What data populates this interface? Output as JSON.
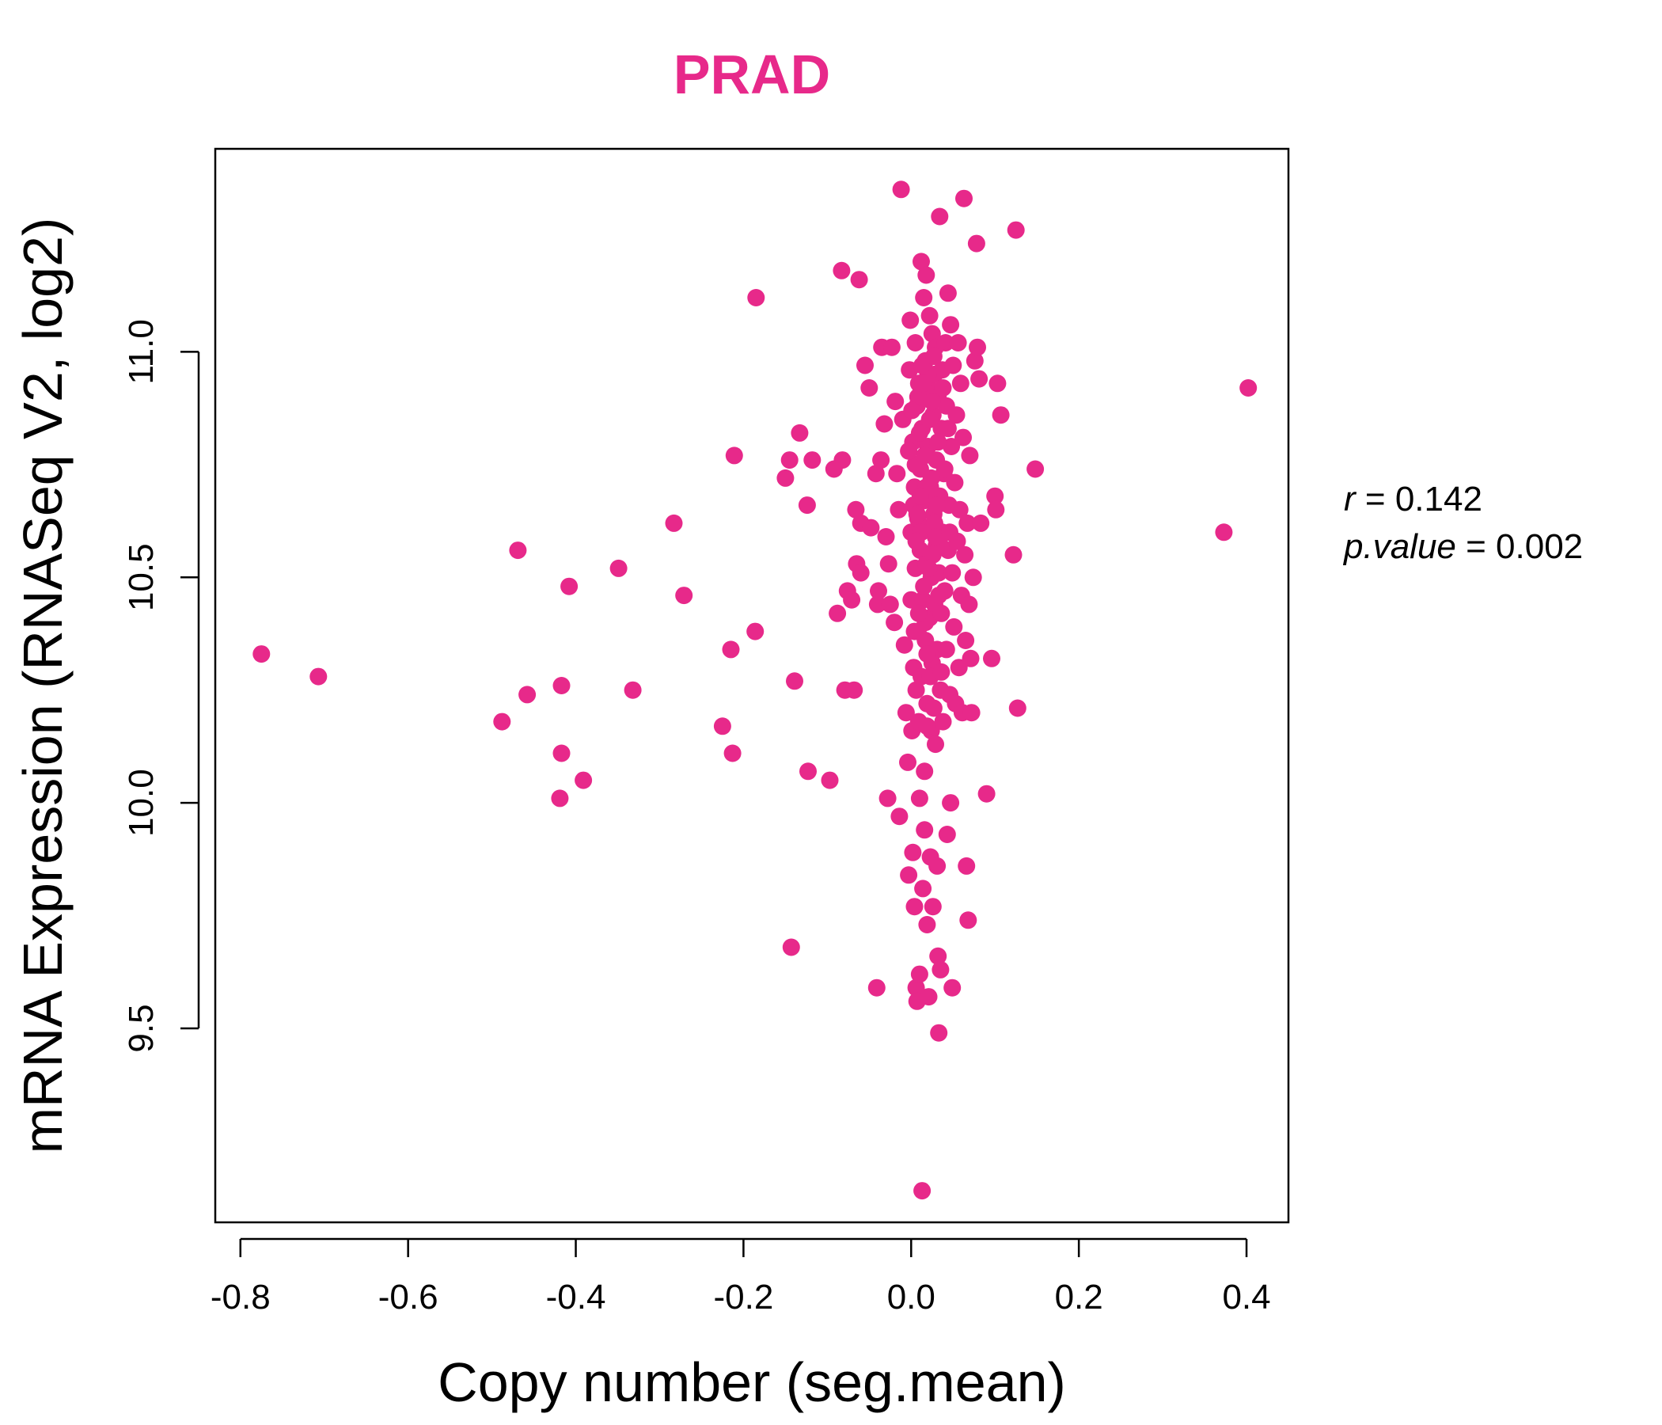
{
  "chart_data": {
    "type": "scatter",
    "title": "PRAD",
    "xlabel": "Copy number (seg.mean)",
    "ylabel": "mRNA Expression (RNASeq V2, log2)",
    "xlim": [
      -0.83,
      0.45
    ],
    "ylim": [
      9.07,
      11.45
    ],
    "x_ticks": [
      "-0.8",
      "-0.6",
      "-0.4",
      "-0.2",
      "0.0",
      "0.2",
      "0.4"
    ],
    "y_ticks": [
      "9.5",
      "10.0",
      "10.5",
      "11.0"
    ],
    "grid": false,
    "legend": "none",
    "color": "#e7298a",
    "stats": {
      "r_label": "r",
      "r_value": "0.142",
      "p_label": "p.value",
      "p_value": "0.002"
    },
    "points": [
      [
        -0.775,
        10.33
      ],
      [
        -0.707,
        10.28
      ],
      [
        -0.488,
        10.18
      ],
      [
        -0.469,
        10.56
      ],
      [
        -0.458,
        10.24
      ],
      [
        -0.417,
        10.26
      ],
      [
        -0.417,
        10.11
      ],
      [
        -0.419,
        10.01
      ],
      [
        -0.408,
        10.48
      ],
      [
        -0.391,
        10.05
      ],
      [
        -0.349,
        10.52
      ],
      [
        -0.332,
        10.25
      ],
      [
        -0.283,
        10.62
      ],
      [
        -0.271,
        10.46
      ],
      [
        -0.225,
        10.17
      ],
      [
        -0.215,
        10.34
      ],
      [
        -0.213,
        10.11
      ],
      [
        -0.211,
        10.77
      ],
      [
        -0.186,
        10.38
      ],
      [
        -0.185,
        11.12
      ],
      [
        -0.15,
        10.72
      ],
      [
        -0.145,
        10.76
      ],
      [
        -0.143,
        9.68
      ],
      [
        -0.139,
        10.27
      ],
      [
        -0.133,
        10.82
      ],
      [
        -0.124,
        10.66
      ],
      [
        -0.123,
        10.07
      ],
      [
        -0.118,
        10.76
      ],
      [
        -0.097,
        10.05
      ],
      [
        -0.092,
        10.74
      ],
      [
        -0.088,
        10.42
      ],
      [
        -0.083,
        11.18
      ],
      [
        -0.082,
        10.76
      ],
      [
        -0.079,
        10.25
      ],
      [
        -0.076,
        10.47
      ],
      [
        -0.071,
        10.45
      ],
      [
        -0.068,
        10.25
      ],
      [
        -0.066,
        10.65
      ],
      [
        -0.065,
        10.53
      ],
      [
        -0.062,
        11.16
      ],
      [
        -0.06,
        10.51
      ],
      [
        -0.06,
        10.62
      ],
      [
        -0.055,
        10.97
      ],
      [
        -0.05,
        10.92
      ],
      [
        -0.048,
        10.61
      ],
      [
        -0.042,
        10.73
      ],
      [
        -0.041,
        9.59
      ],
      [
        -0.04,
        10.44
      ],
      [
        -0.039,
        10.47
      ],
      [
        -0.036,
        10.76
      ],
      [
        -0.035,
        11.01
      ],
      [
        -0.032,
        10.84
      ],
      [
        -0.03,
        10.59
      ],
      [
        -0.028,
        10.01
      ],
      [
        -0.027,
        10.53
      ],
      [
        -0.025,
        10.44
      ],
      [
        -0.023,
        11.01
      ],
      [
        -0.02,
        10.4
      ],
      [
        -0.019,
        10.89
      ],
      [
        -0.017,
        10.73
      ],
      [
        -0.015,
        10.65
      ],
      [
        -0.014,
        9.97
      ],
      [
        -0.012,
        11.36
      ],
      [
        -0.01,
        10.85
      ],
      [
        -0.008,
        10.35
      ],
      [
        -0.006,
        10.2
      ],
      [
        -0.004,
        10.09
      ],
      [
        -0.003,
        9.84
      ],
      [
        -0.002,
        10.96
      ],
      [
        -0.001,
        11.07
      ],
      [
        0.0,
        10.6
      ],
      [
        0.0,
        10.45
      ],
      [
        0.001,
        10.16
      ],
      [
        0.002,
        9.89
      ],
      [
        0.002,
        10.8
      ],
      [
        0.003,
        10.3
      ],
      [
        0.004,
        9.77
      ],
      [
        0.004,
        10.7
      ],
      [
        0.005,
        10.52
      ],
      [
        0.005,
        11.02
      ],
      [
        0.006,
        10.25
      ],
      [
        0.006,
        9.59
      ],
      [
        0.007,
        10.88
      ],
      [
        0.007,
        9.56
      ],
      [
        0.008,
        10.38
      ],
      [
        0.008,
        10.63
      ],
      [
        0.009,
        10.18
      ],
      [
        0.009,
        10.93
      ],
      [
        0.01,
        10.01
      ],
      [
        0.01,
        9.62
      ],
      [
        0.011,
        10.56
      ],
      [
        0.011,
        10.74
      ],
      [
        0.012,
        11.2
      ],
      [
        0.012,
        10.28
      ],
      [
        0.013,
        9.14
      ],
      [
        0.013,
        10.83
      ],
      [
        0.014,
        10.45
      ],
      [
        0.014,
        9.81
      ],
      [
        0.015,
        10.67
      ],
      [
        0.015,
        11.12
      ],
      [
        0.016,
        10.07
      ],
      [
        0.016,
        9.94
      ],
      [
        0.017,
        10.36
      ],
      [
        0.017,
        10.98
      ],
      [
        0.018,
        10.53
      ],
      [
        0.018,
        11.17
      ],
      [
        0.019,
        9.73
      ],
      [
        0.019,
        10.22
      ],
      [
        0.02,
        10.79
      ],
      [
        0.02,
        10.61
      ],
      [
        0.021,
        9.57
      ],
      [
        0.021,
        10.92
      ],
      [
        0.022,
        10.41
      ],
      [
        0.022,
        11.08
      ],
      [
        0.023,
        9.88
      ],
      [
        0.023,
        10.7
      ],
      [
        0.024,
        10.16
      ],
      [
        0.024,
        10.5
      ],
      [
        0.025,
        11.04
      ],
      [
        0.025,
        10.31
      ],
      [
        0.026,
        10.86
      ],
      [
        0.026,
        9.77
      ],
      [
        0.027,
        10.64
      ],
      [
        0.027,
        10.21
      ],
      [
        0.028,
        10.95
      ],
      [
        0.028,
        10.44
      ],
      [
        0.029,
        10.13
      ],
      [
        0.029,
        11.01
      ],
      [
        0.03,
        10.57
      ],
      [
        0.03,
        10.76
      ],
      [
        0.031,
        9.86
      ],
      [
        0.031,
        10.34
      ],
      [
        0.032,
        10.9
      ],
      [
        0.032,
        9.66
      ],
      [
        0.033,
        10.51
      ],
      [
        0.033,
        9.49
      ],
      [
        0.034,
        10.68
      ],
      [
        0.034,
        11.3
      ],
      [
        0.035,
        10.25
      ],
      [
        0.035,
        9.63
      ],
      [
        0.036,
        10.83
      ],
      [
        0.036,
        10.42
      ],
      [
        0.037,
        10.96
      ],
      [
        0.037,
        10.6
      ],
      [
        0.038,
        10.18
      ],
      [
        0.039,
        10.73
      ],
      [
        0.04,
        10.47
      ],
      [
        0.041,
        11.02
      ],
      [
        0.042,
        10.34
      ],
      [
        0.042,
        10.88
      ],
      [
        0.043,
        9.93
      ],
      [
        0.044,
        10.56
      ],
      [
        0.044,
        11.13
      ],
      [
        0.045,
        10.66
      ],
      [
        0.046,
        10.24
      ],
      [
        0.047,
        10.0
      ],
      [
        0.047,
        11.06
      ],
      [
        0.048,
        10.79
      ],
      [
        0.049,
        10.51
      ],
      [
        0.049,
        9.59
      ],
      [
        0.05,
        10.97
      ],
      [
        0.051,
        10.39
      ],
      [
        0.052,
        10.71
      ],
      [
        0.053,
        10.22
      ],
      [
        0.054,
        10.86
      ],
      [
        0.055,
        10.58
      ],
      [
        0.056,
        11.02
      ],
      [
        0.057,
        10.3
      ],
      [
        0.058,
        10.65
      ],
      [
        0.059,
        10.93
      ],
      [
        0.06,
        10.46
      ],
      [
        0.061,
        10.2
      ],
      [
        0.062,
        10.81
      ],
      [
        0.063,
        11.34
      ],
      [
        0.064,
        10.55
      ],
      [
        0.065,
        10.36
      ],
      [
        0.066,
        9.86
      ],
      [
        0.067,
        10.62
      ],
      [
        0.068,
        9.74
      ],
      [
        0.069,
        10.44
      ],
      [
        0.07,
        10.77
      ],
      [
        0.071,
        10.32
      ],
      [
        0.072,
        10.2
      ],
      [
        0.074,
        10.5
      ],
      [
        0.076,
        10.98
      ],
      [
        0.078,
        11.24
      ],
      [
        0.079,
        11.01
      ],
      [
        0.081,
        10.94
      ],
      [
        0.083,
        10.62
      ],
      [
        0.09,
        10.02
      ],
      [
        0.096,
        10.32
      ],
      [
        0.1,
        10.68
      ],
      [
        0.101,
        10.65
      ],
      [
        0.103,
        10.93
      ],
      [
        0.107,
        10.86
      ],
      [
        0.122,
        10.55
      ],
      [
        0.125,
        11.27
      ],
      [
        0.127,
        10.21
      ],
      [
        0.148,
        10.74
      ],
      [
        0.373,
        10.6
      ],
      [
        0.402,
        10.92
      ],
      [
        0.005,
        10.75
      ],
      [
        0.012,
        10.6
      ],
      [
        0.018,
        10.7
      ],
      [
        0.022,
        10.85
      ],
      [
        0.028,
        10.62
      ],
      [
        0.008,
        10.9
      ],
      [
        0.015,
        10.48
      ],
      [
        0.02,
        10.95
      ],
      [
        0.026,
        10.55
      ],
      [
        0.032,
        10.8
      ],
      [
        0.003,
        10.66
      ],
      [
        0.01,
        10.82
      ],
      [
        0.017,
        10.4
      ],
      [
        0.024,
        10.72
      ],
      [
        0.03,
        10.68
      ],
      [
        0.006,
        10.58
      ],
      [
        0.013,
        10.97
      ],
      [
        0.019,
        10.33
      ],
      [
        0.025,
        10.89
      ],
      [
        0.035,
        10.57
      ],
      [
        0.001,
        10.87
      ],
      [
        0.009,
        10.42
      ],
      [
        0.016,
        10.77
      ],
      [
        0.023,
        10.28
      ],
      [
        0.038,
        10.92
      ],
      [
        0.011,
        10.68
      ],
      [
        0.021,
        10.52
      ],
      [
        0.027,
        10.99
      ],
      [
        0.033,
        10.46
      ],
      [
        0.04,
        10.74
      ],
      [
        0.004,
        10.38
      ],
      [
        0.014,
        10.93
      ],
      [
        0.029,
        10.59
      ],
      [
        0.036,
        10.29
      ],
      [
        0.044,
        10.83
      ],
      [
        -0.003,
        10.78
      ],
      [
        0.007,
        10.64
      ],
      [
        0.019,
        10.17
      ],
      [
        0.031,
        10.66
      ],
      [
        0.046,
        10.6
      ]
    ]
  }
}
